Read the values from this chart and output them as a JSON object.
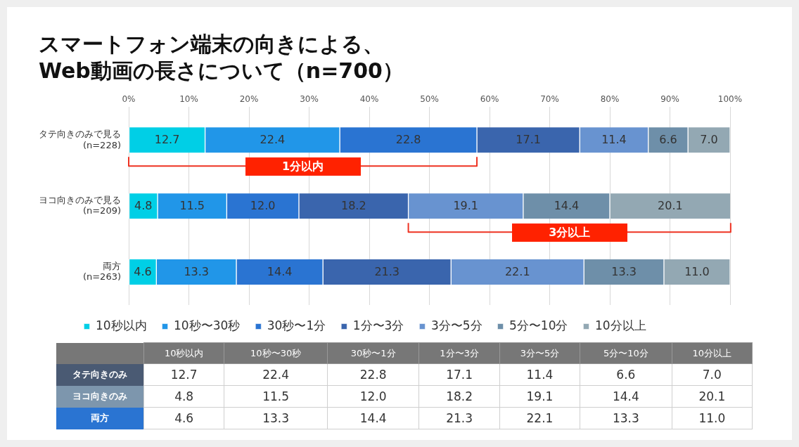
{
  "chart_data": {
    "type": "bar",
    "orientation": "horizontal",
    "stacked": true,
    "title": "スマートフォン端末の向きによる、\nWeb動画の長さについて（n=700）",
    "categories": [
      "タテ向きのみで見る\n(n=228)",
      "ヨコ向きのみで見る\n(n=209)",
      "両方\n(n=263)"
    ],
    "series": [
      {
        "name": "10秒以内",
        "color": "#00cfe6",
        "values": [
          12.7,
          4.8,
          4.6
        ],
        "value_labels": [
          "12.7",
          "4.8",
          "4.6"
        ]
      },
      {
        "name": "10秒〜30秒",
        "color": "#2196e8",
        "values": [
          22.4,
          11.5,
          13.3
        ],
        "value_labels": [
          "22.4",
          "11.5",
          "13.3"
        ]
      },
      {
        "name": "30秒〜1分",
        "color": "#2a74d2",
        "values": [
          22.8,
          12.0,
          14.4
        ],
        "value_labels": [
          "22.8",
          "12.0",
          "14.4"
        ]
      },
      {
        "name": "1分〜3分",
        "color": "#3a65ad",
        "values": [
          17.1,
          18.2,
          21.3
        ],
        "value_labels": [
          "17.1",
          "18.2",
          "21.3"
        ]
      },
      {
        "name": "3分〜5分",
        "color": "#6893d0",
        "values": [
          11.4,
          19.1,
          22.1
        ],
        "value_labels": [
          "11.4",
          "19.1",
          "22.1"
        ]
      },
      {
        "name": "5分〜10分",
        "color": "#6e8fa9",
        "values": [
          6.6,
          14.4,
          13.3
        ],
        "value_labels": [
          "6.6",
          "14.4",
          "13.3"
        ]
      },
      {
        "name": "10分以上",
        "color": "#93a8b3",
        "values": [
          7.0,
          20.1,
          11.0
        ],
        "value_labels": [
          "7.0",
          "20.1",
          "11.0"
        ]
      }
    ],
    "xlim": [
      0,
      100
    ],
    "xticks": [
      {
        "value": 0,
        "label": "0%"
      },
      {
        "value": 10,
        "label": "10%"
      },
      {
        "value": 20,
        "label": "20%"
      },
      {
        "value": 30,
        "label": "30%"
      },
      {
        "value": 40,
        "label": "40%"
      },
      {
        "value": 50,
        "label": "50%"
      },
      {
        "value": 60,
        "label": "60%"
      },
      {
        "value": 70,
        "label": "70%"
      },
      {
        "value": 80,
        "label": "80%"
      },
      {
        "value": 90,
        "label": "90%"
      },
      {
        "value": 100,
        "label": "100%"
      }
    ],
    "grid": "x",
    "legend": "bottom",
    "annotations": [
      "1分以内",
      "3分以上",
      "タテ向きのみ",
      "ヨコ向きのみ",
      "両方"
    ]
  }
}
